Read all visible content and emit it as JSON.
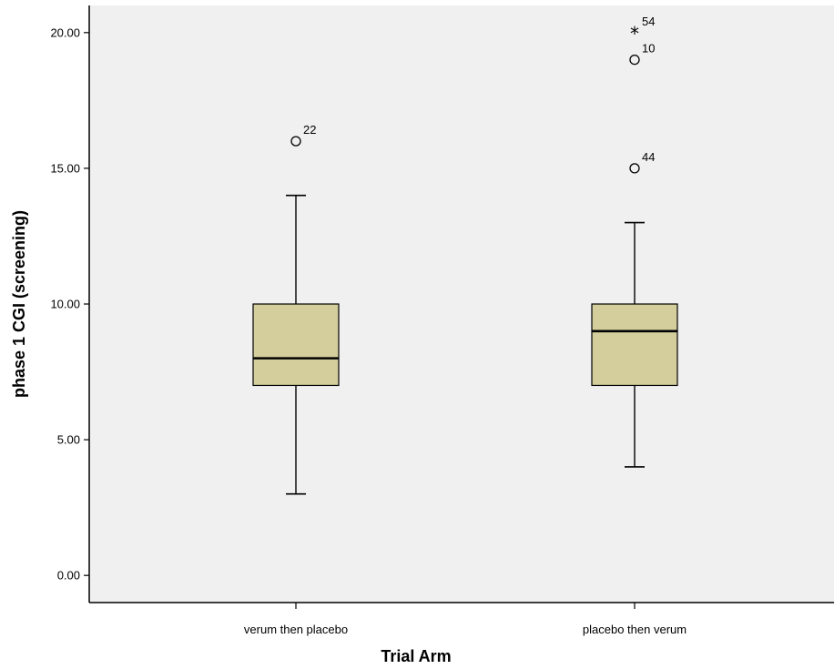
{
  "chart_data": {
    "type": "boxplot",
    "title": "",
    "xlabel": "Trial Arm",
    "ylabel": "phase 1 CGI (screening)",
    "ylim": [
      -1,
      21
    ],
    "yticks": [
      0,
      5,
      10,
      15,
      20
    ],
    "ytick_labels": [
      "0.00",
      "5.00",
      "10.00",
      "15.00",
      "20.00"
    ],
    "categories": [
      "verum then placebo",
      "placebo then verum"
    ],
    "grid": false,
    "colors": {
      "plot_background": "#f0f0f0",
      "box_fill": "#d3ce9c",
      "stroke": "#000000"
    },
    "boxes": [
      {
        "category": "verum then placebo",
        "whisker_low": 3,
        "q1": 7,
        "median": 8,
        "q3": 10,
        "whisker_high": 14,
        "outliers": [
          {
            "value": 16,
            "label": "22",
            "marker": "circle"
          }
        ]
      },
      {
        "category": "placebo then verum",
        "whisker_low": 4,
        "q1": 7,
        "median": 9,
        "q3": 10,
        "whisker_high": 13,
        "outliers": [
          {
            "value": 20,
            "label": "54",
            "marker": "star"
          },
          {
            "value": 19,
            "label": "10",
            "marker": "circle"
          },
          {
            "value": 15,
            "label": "44",
            "marker": "circle"
          }
        ]
      }
    ]
  }
}
